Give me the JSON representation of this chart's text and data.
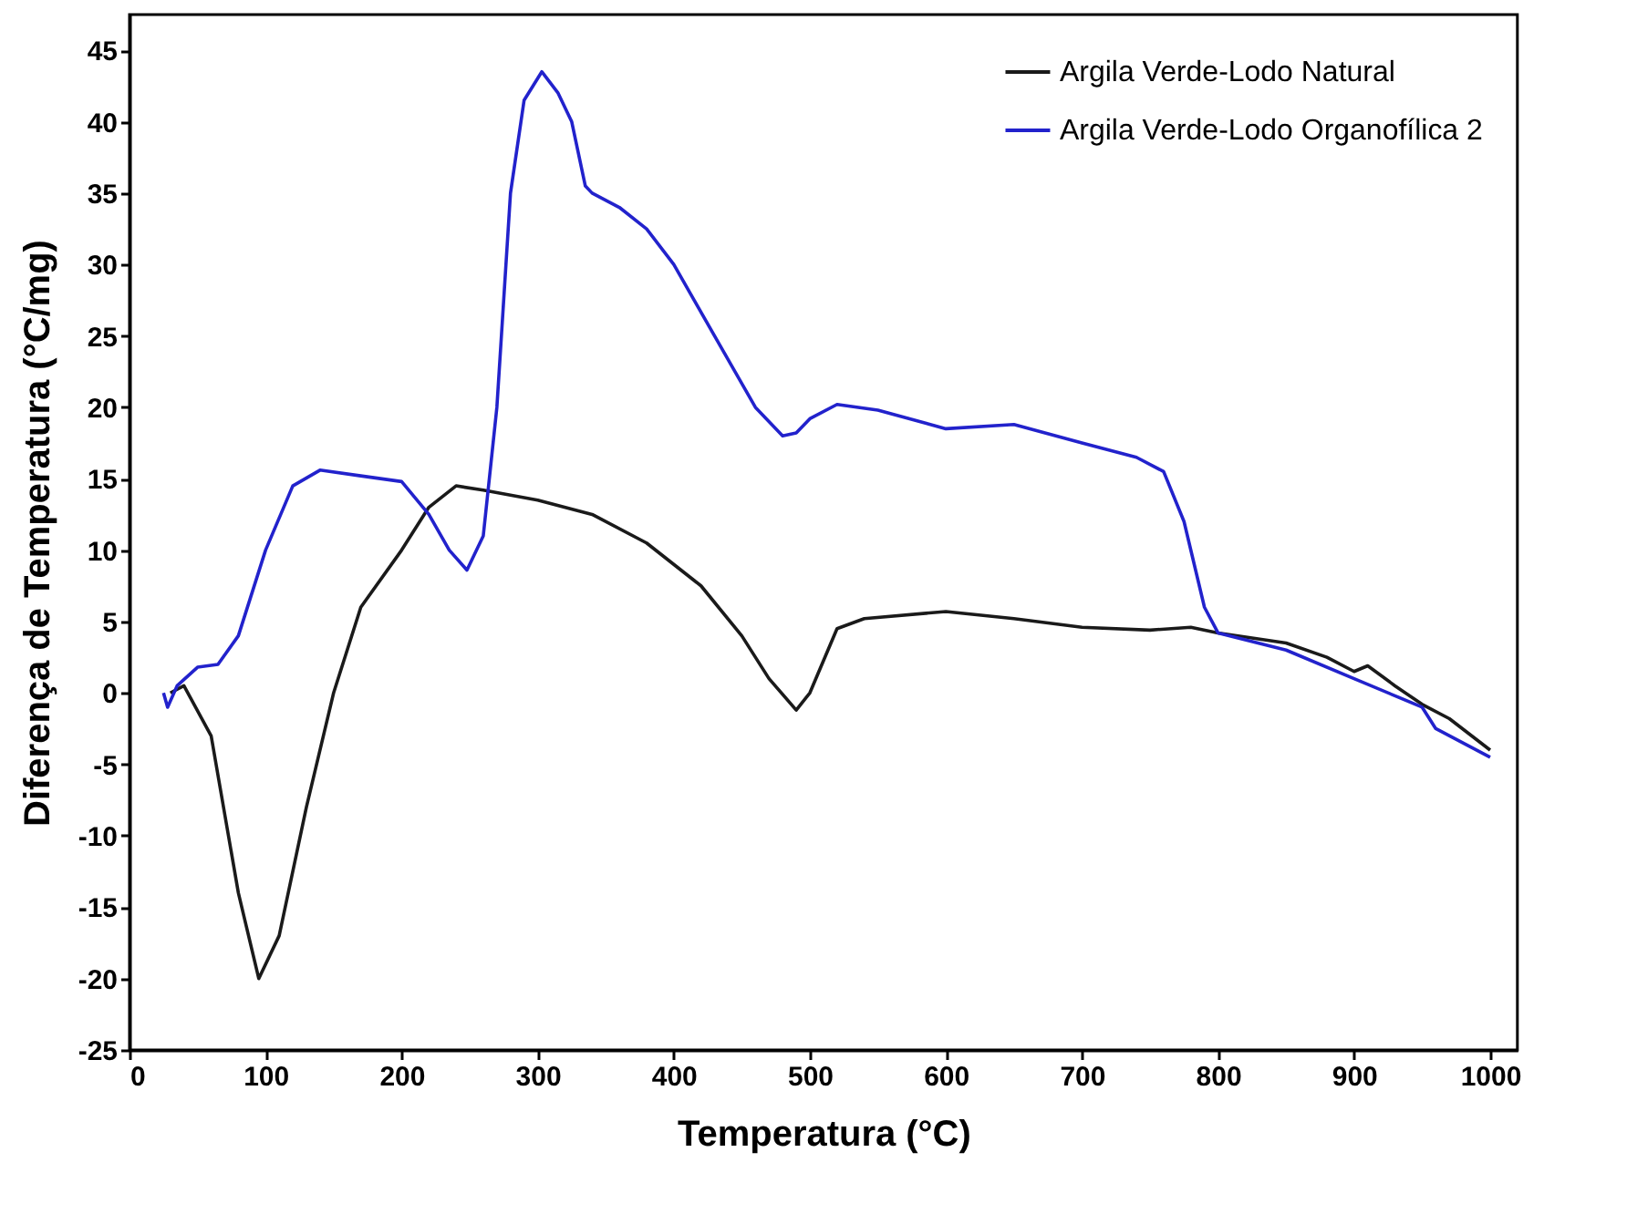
{
  "chart_data": {
    "type": "line",
    "xlabel": "Temperatura (°C)",
    "ylabel": "Diferença de Temperatura (°C/mg)",
    "xlim": [
      0,
      1020
    ],
    "ylim": [
      -25,
      47.5
    ],
    "xticks": [
      0,
      100,
      200,
      300,
      400,
      500,
      600,
      700,
      800,
      900,
      1000
    ],
    "yticks": [
      -25,
      -20,
      -15,
      -10,
      -5,
      0,
      5,
      10,
      15,
      20,
      25,
      30,
      35,
      40,
      45
    ],
    "grid": false,
    "legend": "top right",
    "marker": "none",
    "line_style": "solid",
    "series": [
      {
        "name": "Argila Verde-Lodo Natural",
        "color": "#1a1a1a",
        "x": [
          30,
          40,
          60,
          80,
          95,
          110,
          130,
          150,
          170,
          200,
          220,
          240,
          260,
          300,
          340,
          380,
          420,
          450,
          470,
          490,
          500,
          520,
          540,
          600,
          650,
          700,
          750,
          780,
          800,
          850,
          880,
          900,
          910,
          930,
          950,
          970,
          1000
        ],
        "values": [
          0,
          0.5,
          -3,
          -14,
          -20,
          -17,
          -8,
          0,
          6,
          10,
          13,
          14.5,
          14.2,
          13.5,
          12.5,
          10.5,
          7.5,
          4,
          1,
          -1.2,
          0,
          4.5,
          5.2,
          5.7,
          5.2,
          4.6,
          4.4,
          4.6,
          4.2,
          3.5,
          2.5,
          1.5,
          1.9,
          0.5,
          -0.8,
          -1.8,
          -4
        ]
      },
      {
        "name": "Argila Verde-Lodo Organofílica 2",
        "color": "#2222cc",
        "x": [
          25,
          28,
          35,
          50,
          65,
          80,
          100,
          120,
          140,
          170,
          200,
          220,
          235,
          248,
          260,
          270,
          280,
          290,
          303,
          315,
          325,
          335,
          340,
          360,
          380,
          400,
          430,
          460,
          480,
          490,
          500,
          520,
          550,
          600,
          650,
          700,
          740,
          760,
          775,
          790,
          800,
          850,
          900,
          950,
          960,
          1000
        ],
        "values": [
          0,
          -1,
          0.5,
          1.8,
          2,
          4,
          10,
          14.5,
          15.6,
          15.2,
          14.8,
          12.5,
          10,
          8.6,
          11,
          20,
          35,
          41.5,
          43.5,
          42,
          40,
          35.5,
          35,
          34,
          32.5,
          30,
          25,
          20,
          18,
          18.2,
          19.2,
          20.2,
          19.8,
          18.5,
          18.8,
          17.5,
          16.5,
          15.5,
          12,
          6,
          4.2,
          3,
          1,
          -1,
          -2.5,
          -4.5
        ]
      }
    ]
  }
}
